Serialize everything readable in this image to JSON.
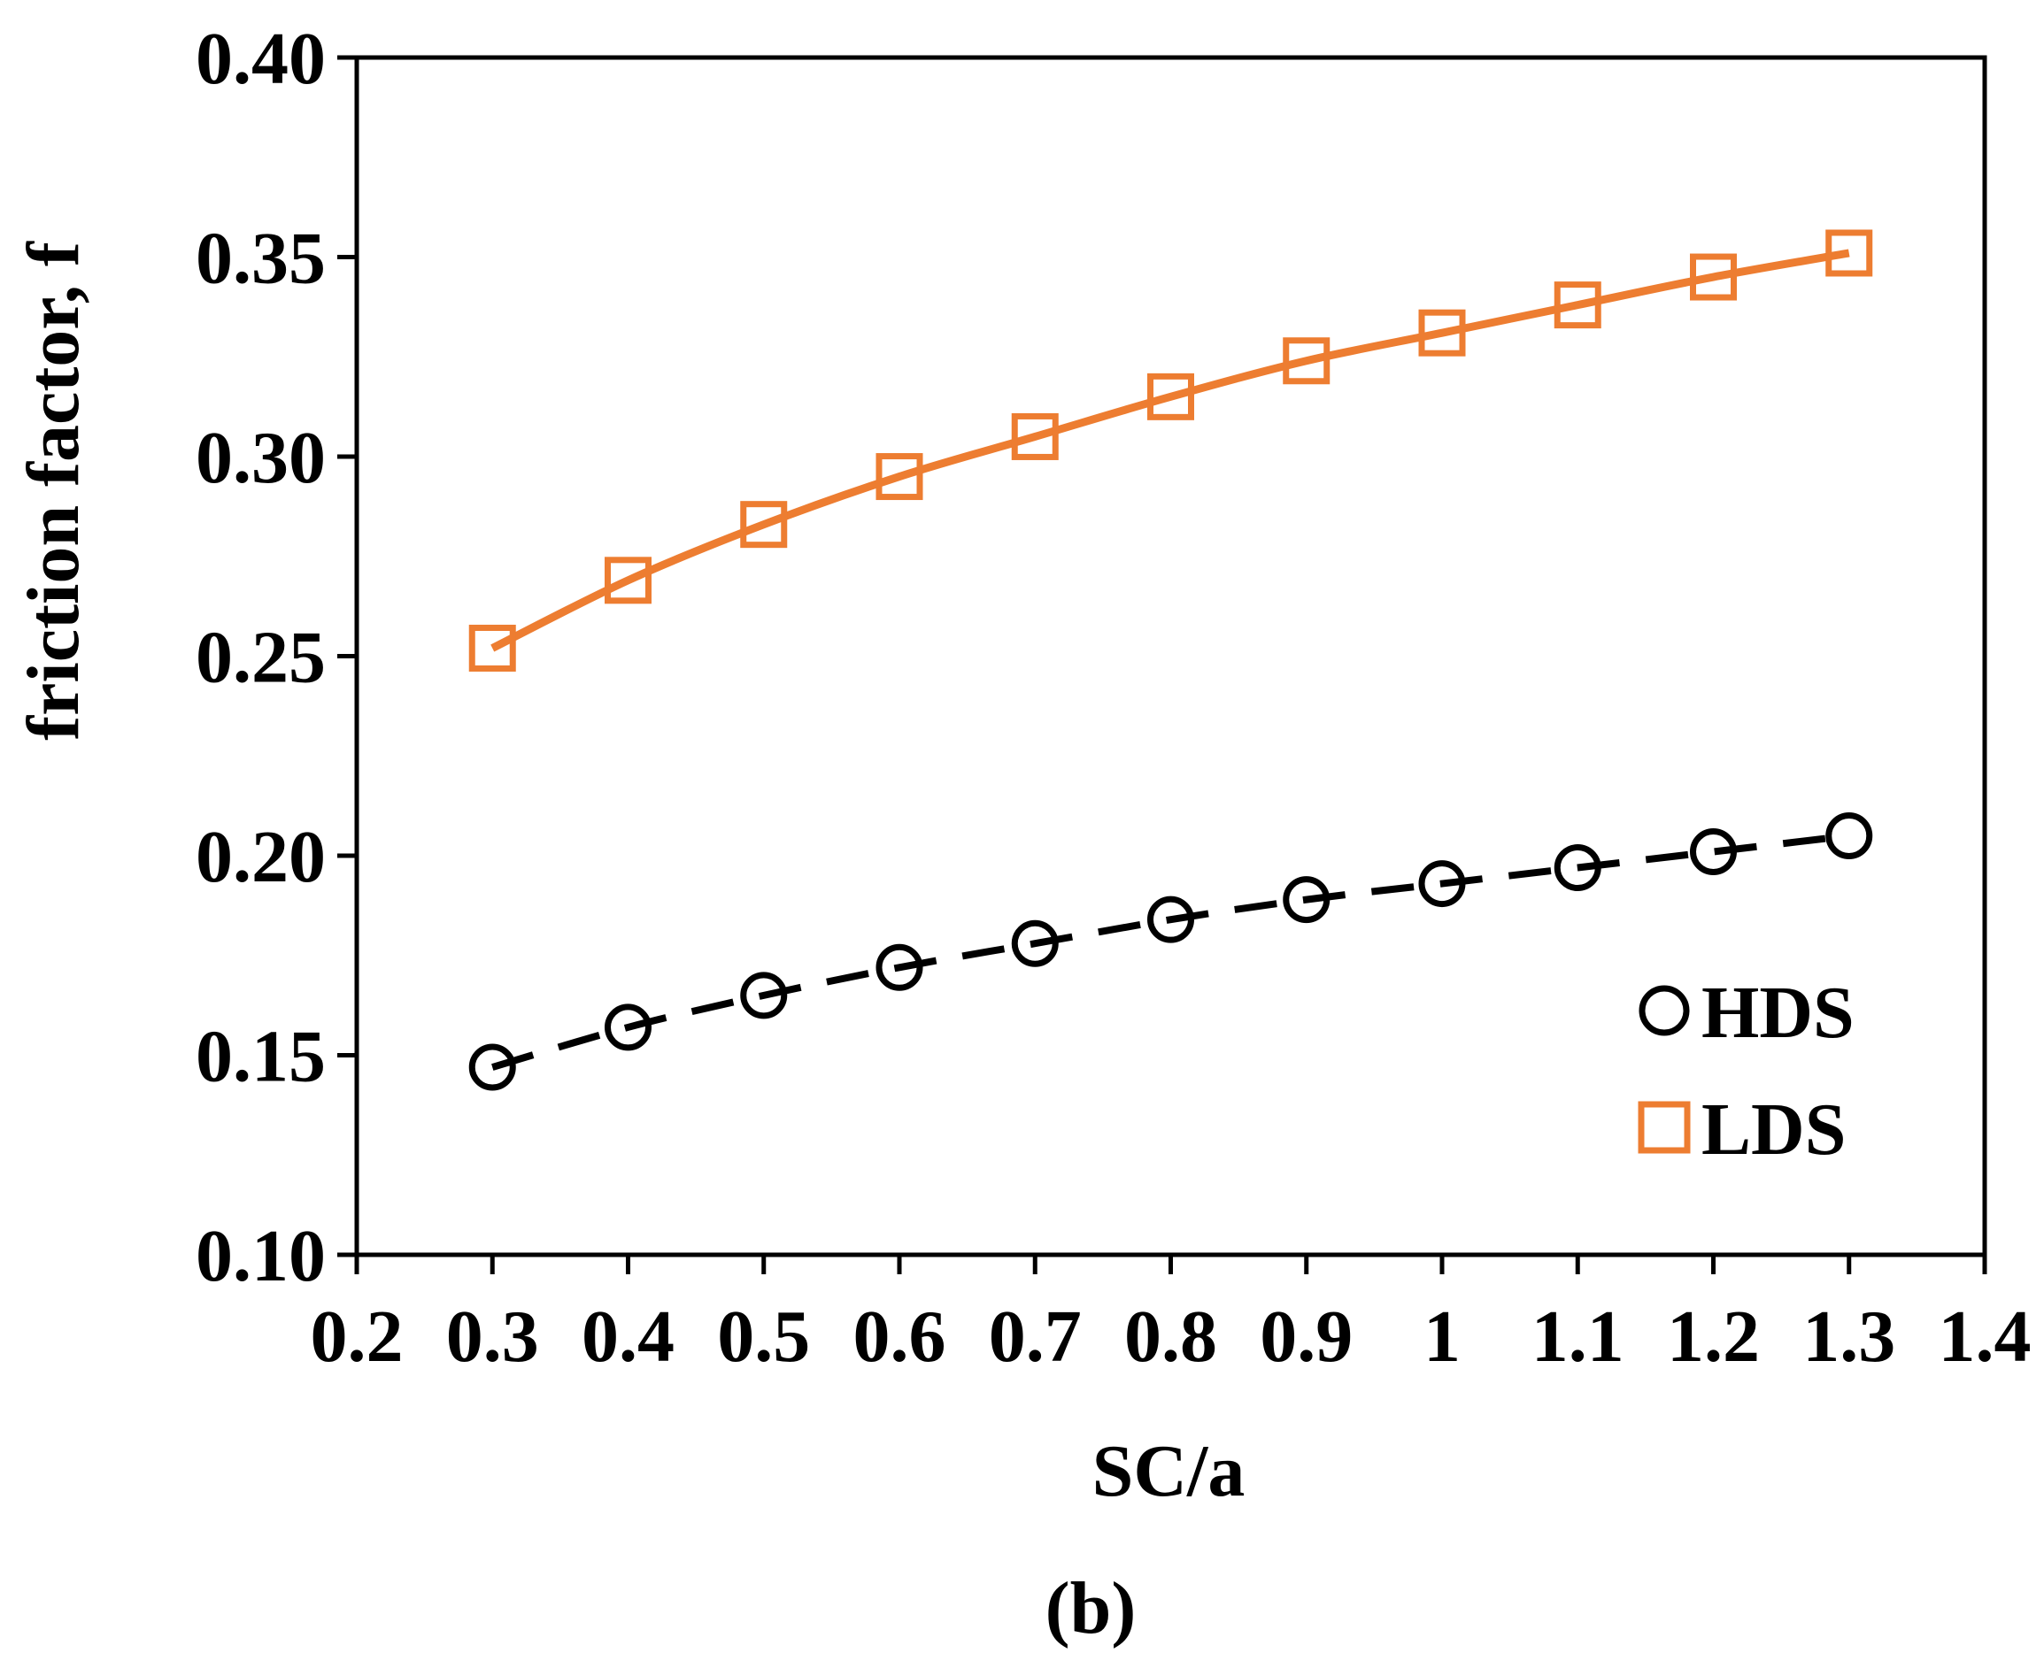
{
  "chart_data": {
    "type": "line",
    "title": "",
    "xlabel": "SC/a",
    "ylabel": "friction factor, f",
    "caption": "(b)",
    "xlim": [
      0.2,
      1.4
    ],
    "ylim": [
      0.1,
      0.4
    ],
    "xticks": [
      "0.2",
      "0.3",
      "0.4",
      "0.5",
      "0.6",
      "0.7",
      "0.8",
      "0.9",
      "1",
      "1.1",
      "1.2",
      "1.3",
      "1.4"
    ],
    "yticks": [
      "0.10",
      "0.15",
      "0.20",
      "0.25",
      "0.30",
      "0.35",
      "0.40"
    ],
    "grid": false,
    "legend_position": "bottom-right",
    "x": [
      0.3,
      0.4,
      0.5,
      0.6,
      0.7,
      0.8,
      0.9,
      1.0,
      1.1,
      1.2,
      1.3
    ],
    "series": [
      {
        "name": "HDS",
        "marker": "circle",
        "line": "dashed",
        "color": "#000000",
        "values": [
          0.147,
          0.157,
          0.165,
          0.172,
          0.178,
          0.184,
          0.189,
          0.193,
          0.197,
          0.201,
          0.205
        ]
      },
      {
        "name": "LDS",
        "marker": "square",
        "line": "solid",
        "color": "#ED7D31",
        "values": [
          0.252,
          0.269,
          0.283,
          0.295,
          0.305,
          0.315,
          0.324,
          0.331,
          0.338,
          0.345,
          0.351
        ]
      }
    ]
  }
}
